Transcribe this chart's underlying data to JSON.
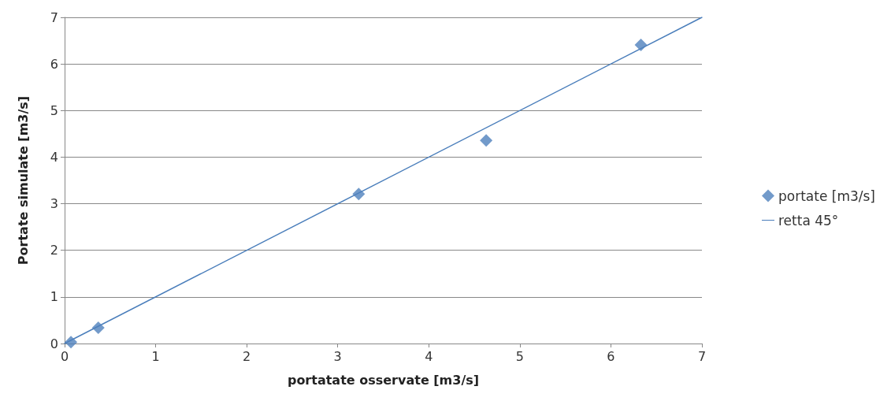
{
  "chart_data": {
    "type": "scatter",
    "xlabel": "portatate osservate [m3/s]",
    "ylabel": "Portate simulate [m3/s]",
    "xlim": [
      0,
      7
    ],
    "xticks": [
      0,
      1,
      2,
      3,
      4,
      5,
      6,
      7
    ],
    "ylim": [
      0,
      7
    ],
    "yticks": [
      0,
      1,
      2,
      3,
      4,
      5,
      6,
      7
    ],
    "grid": "y",
    "legend": "right",
    "marker": "diamond",
    "series": [
      {
        "name": "portate [m3/s]",
        "type": "scatter",
        "color": "#4f81bd",
        "x": [
          0.07,
          0.37,
          3.23,
          4.63,
          6.33
        ],
        "values": [
          0.03,
          0.34,
          3.21,
          4.36,
          6.41
        ]
      },
      {
        "name": "retta 45°",
        "type": "line",
        "color": "#4a7ebb",
        "marker": "none",
        "x": [
          0,
          7
        ],
        "values": [
          0,
          7
        ]
      }
    ]
  }
}
